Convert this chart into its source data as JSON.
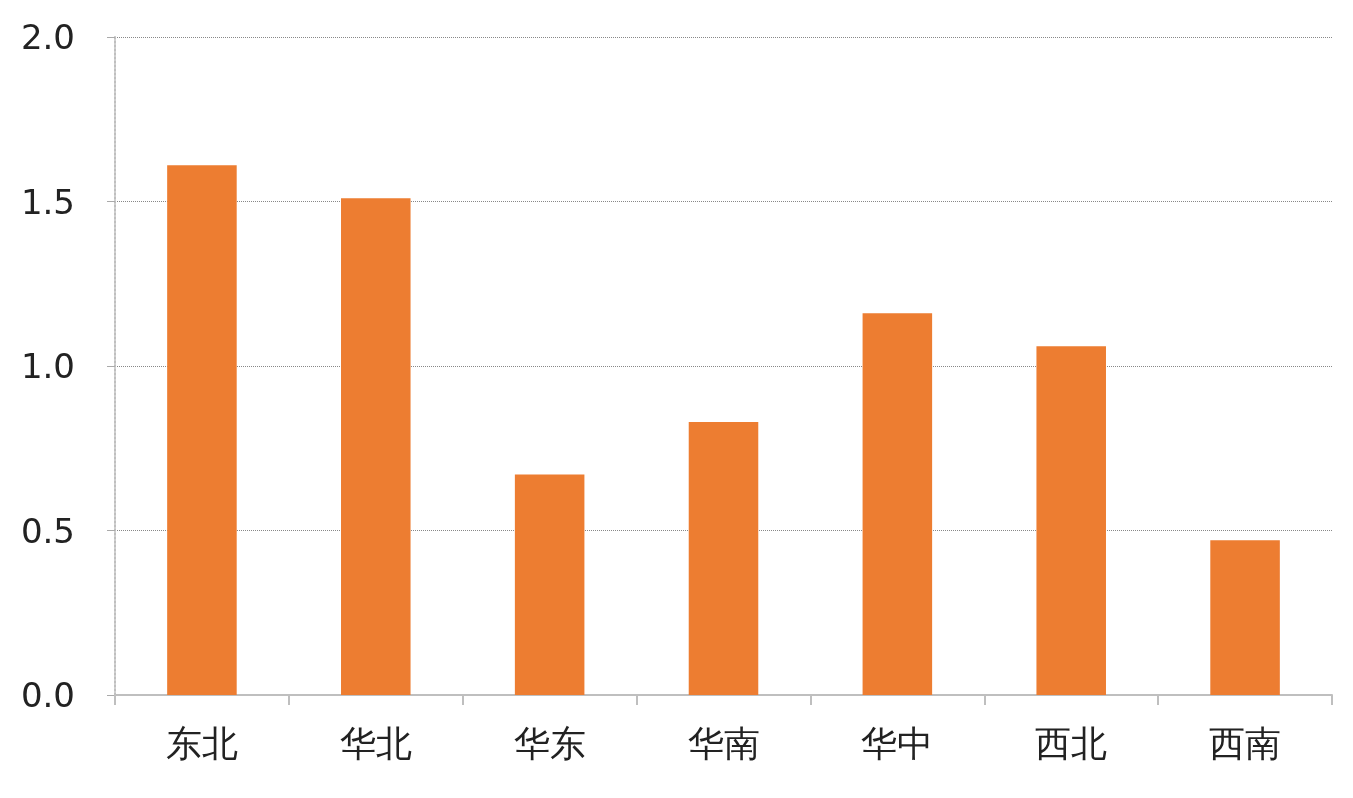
{
  "chart_data": {
    "type": "bar",
    "categories": [
      "东北",
      "华北",
      "华东",
      "华南",
      "华中",
      "西北",
      "西南"
    ],
    "values": [
      1.61,
      1.51,
      0.67,
      0.83,
      1.16,
      1.06,
      0.47
    ],
    "color": "#ed7d31",
    "ylim": [
      0,
      2
    ],
    "yticks": [
      {
        "value": 0,
        "label": "0.0"
      },
      {
        "value": 0.5,
        "label": "0.5"
      },
      {
        "value": 1,
        "label": "1.0"
      },
      {
        "value": 1.5,
        "label": "1.5"
      },
      {
        "value": 2,
        "label": "2.0"
      }
    ],
    "grid": "y"
  }
}
